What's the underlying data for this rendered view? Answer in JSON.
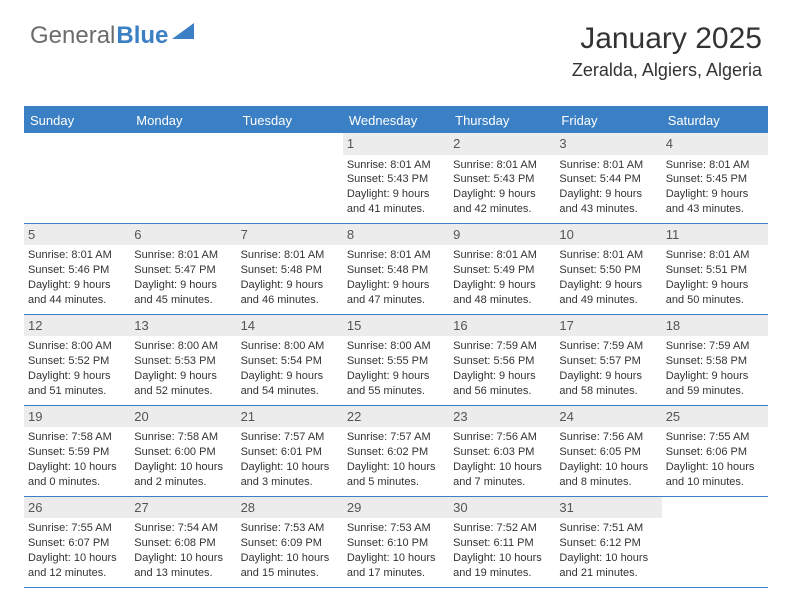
{
  "logo": {
    "text_general": "General",
    "text_blue": "Blue",
    "triangle_color": "#3b7fc4"
  },
  "header": {
    "title": "January 2025",
    "location": "Zeralda, Algiers, Algeria"
  },
  "style": {
    "accent": "#3b7fc4",
    "daynum_bg": "#ececec",
    "text_color": "#333333",
    "header_text_color": "#ffffff",
    "cell_font_size_pt": 8,
    "title_font_size_pt": 22
  },
  "calendar": {
    "type": "table",
    "day_labels": [
      "Sunday",
      "Monday",
      "Tuesday",
      "Wednesday",
      "Thursday",
      "Friday",
      "Saturday"
    ],
    "weeks": [
      [
        {
          "day": "",
          "sunrise": "",
          "sunset": "",
          "daylight1": "",
          "daylight2": ""
        },
        {
          "day": "",
          "sunrise": "",
          "sunset": "",
          "daylight1": "",
          "daylight2": ""
        },
        {
          "day": "",
          "sunrise": "",
          "sunset": "",
          "daylight1": "",
          "daylight2": ""
        },
        {
          "day": "1",
          "sunrise": "Sunrise: 8:01 AM",
          "sunset": "Sunset: 5:43 PM",
          "daylight1": "Daylight: 9 hours",
          "daylight2": "and 41 minutes."
        },
        {
          "day": "2",
          "sunrise": "Sunrise: 8:01 AM",
          "sunset": "Sunset: 5:43 PM",
          "daylight1": "Daylight: 9 hours",
          "daylight2": "and 42 minutes."
        },
        {
          "day": "3",
          "sunrise": "Sunrise: 8:01 AM",
          "sunset": "Sunset: 5:44 PM",
          "daylight1": "Daylight: 9 hours",
          "daylight2": "and 43 minutes."
        },
        {
          "day": "4",
          "sunrise": "Sunrise: 8:01 AM",
          "sunset": "Sunset: 5:45 PM",
          "daylight1": "Daylight: 9 hours",
          "daylight2": "and 43 minutes."
        }
      ],
      [
        {
          "day": "5",
          "sunrise": "Sunrise: 8:01 AM",
          "sunset": "Sunset: 5:46 PM",
          "daylight1": "Daylight: 9 hours",
          "daylight2": "and 44 minutes."
        },
        {
          "day": "6",
          "sunrise": "Sunrise: 8:01 AM",
          "sunset": "Sunset: 5:47 PM",
          "daylight1": "Daylight: 9 hours",
          "daylight2": "and 45 minutes."
        },
        {
          "day": "7",
          "sunrise": "Sunrise: 8:01 AM",
          "sunset": "Sunset: 5:48 PM",
          "daylight1": "Daylight: 9 hours",
          "daylight2": "and 46 minutes."
        },
        {
          "day": "8",
          "sunrise": "Sunrise: 8:01 AM",
          "sunset": "Sunset: 5:48 PM",
          "daylight1": "Daylight: 9 hours",
          "daylight2": "and 47 minutes."
        },
        {
          "day": "9",
          "sunrise": "Sunrise: 8:01 AM",
          "sunset": "Sunset: 5:49 PM",
          "daylight1": "Daylight: 9 hours",
          "daylight2": "and 48 minutes."
        },
        {
          "day": "10",
          "sunrise": "Sunrise: 8:01 AM",
          "sunset": "Sunset: 5:50 PM",
          "daylight1": "Daylight: 9 hours",
          "daylight2": "and 49 minutes."
        },
        {
          "day": "11",
          "sunrise": "Sunrise: 8:01 AM",
          "sunset": "Sunset: 5:51 PM",
          "daylight1": "Daylight: 9 hours",
          "daylight2": "and 50 minutes."
        }
      ],
      [
        {
          "day": "12",
          "sunrise": "Sunrise: 8:00 AM",
          "sunset": "Sunset: 5:52 PM",
          "daylight1": "Daylight: 9 hours",
          "daylight2": "and 51 minutes."
        },
        {
          "day": "13",
          "sunrise": "Sunrise: 8:00 AM",
          "sunset": "Sunset: 5:53 PM",
          "daylight1": "Daylight: 9 hours",
          "daylight2": "and 52 minutes."
        },
        {
          "day": "14",
          "sunrise": "Sunrise: 8:00 AM",
          "sunset": "Sunset: 5:54 PM",
          "daylight1": "Daylight: 9 hours",
          "daylight2": "and 54 minutes."
        },
        {
          "day": "15",
          "sunrise": "Sunrise: 8:00 AM",
          "sunset": "Sunset: 5:55 PM",
          "daylight1": "Daylight: 9 hours",
          "daylight2": "and 55 minutes."
        },
        {
          "day": "16",
          "sunrise": "Sunrise: 7:59 AM",
          "sunset": "Sunset: 5:56 PM",
          "daylight1": "Daylight: 9 hours",
          "daylight2": "and 56 minutes."
        },
        {
          "day": "17",
          "sunrise": "Sunrise: 7:59 AM",
          "sunset": "Sunset: 5:57 PM",
          "daylight1": "Daylight: 9 hours",
          "daylight2": "and 58 minutes."
        },
        {
          "day": "18",
          "sunrise": "Sunrise: 7:59 AM",
          "sunset": "Sunset: 5:58 PM",
          "daylight1": "Daylight: 9 hours",
          "daylight2": "and 59 minutes."
        }
      ],
      [
        {
          "day": "19",
          "sunrise": "Sunrise: 7:58 AM",
          "sunset": "Sunset: 5:59 PM",
          "daylight1": "Daylight: 10 hours",
          "daylight2": "and 0 minutes."
        },
        {
          "day": "20",
          "sunrise": "Sunrise: 7:58 AM",
          "sunset": "Sunset: 6:00 PM",
          "daylight1": "Daylight: 10 hours",
          "daylight2": "and 2 minutes."
        },
        {
          "day": "21",
          "sunrise": "Sunrise: 7:57 AM",
          "sunset": "Sunset: 6:01 PM",
          "daylight1": "Daylight: 10 hours",
          "daylight2": "and 3 minutes."
        },
        {
          "day": "22",
          "sunrise": "Sunrise: 7:57 AM",
          "sunset": "Sunset: 6:02 PM",
          "daylight1": "Daylight: 10 hours",
          "daylight2": "and 5 minutes."
        },
        {
          "day": "23",
          "sunrise": "Sunrise: 7:56 AM",
          "sunset": "Sunset: 6:03 PM",
          "daylight1": "Daylight: 10 hours",
          "daylight2": "and 7 minutes."
        },
        {
          "day": "24",
          "sunrise": "Sunrise: 7:56 AM",
          "sunset": "Sunset: 6:05 PM",
          "daylight1": "Daylight: 10 hours",
          "daylight2": "and 8 minutes."
        },
        {
          "day": "25",
          "sunrise": "Sunrise: 7:55 AM",
          "sunset": "Sunset: 6:06 PM",
          "daylight1": "Daylight: 10 hours",
          "daylight2": "and 10 minutes."
        }
      ],
      [
        {
          "day": "26",
          "sunrise": "Sunrise: 7:55 AM",
          "sunset": "Sunset: 6:07 PM",
          "daylight1": "Daylight: 10 hours",
          "daylight2": "and 12 minutes."
        },
        {
          "day": "27",
          "sunrise": "Sunrise: 7:54 AM",
          "sunset": "Sunset: 6:08 PM",
          "daylight1": "Daylight: 10 hours",
          "daylight2": "and 13 minutes."
        },
        {
          "day": "28",
          "sunrise": "Sunrise: 7:53 AM",
          "sunset": "Sunset: 6:09 PM",
          "daylight1": "Daylight: 10 hours",
          "daylight2": "and 15 minutes."
        },
        {
          "day": "29",
          "sunrise": "Sunrise: 7:53 AM",
          "sunset": "Sunset: 6:10 PM",
          "daylight1": "Daylight: 10 hours",
          "daylight2": "and 17 minutes."
        },
        {
          "day": "30",
          "sunrise": "Sunrise: 7:52 AM",
          "sunset": "Sunset: 6:11 PM",
          "daylight1": "Daylight: 10 hours",
          "daylight2": "and 19 minutes."
        },
        {
          "day": "31",
          "sunrise": "Sunrise: 7:51 AM",
          "sunset": "Sunset: 6:12 PM",
          "daylight1": "Daylight: 10 hours",
          "daylight2": "and 21 minutes."
        },
        {
          "day": "",
          "sunrise": "",
          "sunset": "",
          "daylight1": "",
          "daylight2": ""
        }
      ]
    ]
  }
}
